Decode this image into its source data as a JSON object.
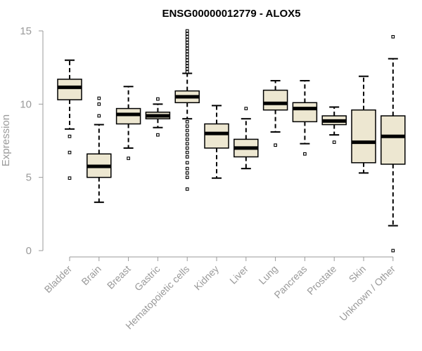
{
  "chart_data": {
    "type": "boxplot",
    "title": "ENSG00000012779 - ALOX5",
    "xlabel": "",
    "ylabel": "Expression",
    "ylim": [
      0,
      15
    ],
    "yticks": [
      0,
      5,
      10,
      15
    ],
    "colors": {
      "box_fill": "#ede7d1",
      "line": "#000000",
      "axis": "#9a9a9a"
    },
    "categories": [
      "Bladder",
      "Brain",
      "Breast",
      "Gastric",
      "Hematopoietic cells",
      "Kidney",
      "Liver",
      "Lung",
      "Pancreas",
      "Prostate",
      "Skin",
      "Unknown / Other"
    ],
    "boxes": [
      {
        "name": "Bladder",
        "q1": 10.3,
        "median": 11.15,
        "q3": 11.7,
        "whisker_low": 8.3,
        "whisker_high": 13.0,
        "outliers": [
          7.8,
          6.7,
          4.95
        ]
      },
      {
        "name": "Brain",
        "q1": 5.0,
        "median": 5.75,
        "q3": 6.6,
        "whisker_low": 3.3,
        "whisker_high": 8.6,
        "outliers": [
          10.4,
          10.0,
          9.2
        ]
      },
      {
        "name": "Breast",
        "q1": 8.65,
        "median": 9.3,
        "q3": 9.7,
        "whisker_low": 7.0,
        "whisker_high": 11.2,
        "outliers": [
          6.3
        ]
      },
      {
        "name": "Gastric",
        "q1": 9.0,
        "median": 9.2,
        "q3": 9.45,
        "whisker_low": 8.4,
        "whisker_high": 10.0,
        "outliers": [
          10.35,
          7.9
        ]
      },
      {
        "name": "Hematopoietic cells",
        "q1": 10.1,
        "median": 10.5,
        "q3": 10.9,
        "whisker_low": 9.0,
        "whisker_high": 12.1,
        "outliers": [
          15.0,
          14.8,
          14.6,
          14.4,
          14.2,
          14.0,
          13.8,
          13.6,
          13.4,
          13.2,
          13.0,
          12.8,
          12.6,
          12.4,
          12.2,
          8.8,
          8.5,
          8.2,
          7.9,
          7.6,
          7.3,
          7.0,
          6.7,
          6.4,
          6.0,
          5.6,
          5.3,
          5.0,
          4.2
        ]
      },
      {
        "name": "Kidney",
        "q1": 7.0,
        "median": 8.0,
        "q3": 8.65,
        "whisker_low": 4.95,
        "whisker_high": 9.9,
        "outliers": []
      },
      {
        "name": "Liver",
        "q1": 6.4,
        "median": 7.0,
        "q3": 7.6,
        "whisker_low": 5.6,
        "whisker_high": 9.0,
        "outliers": [
          9.7
        ]
      },
      {
        "name": "Lung",
        "q1": 9.6,
        "median": 10.05,
        "q3": 10.95,
        "whisker_low": 8.1,
        "whisker_high": 11.6,
        "outliers": [
          7.2
        ]
      },
      {
        "name": "Pancreas",
        "q1": 8.8,
        "median": 9.7,
        "q3": 10.1,
        "whisker_low": 7.3,
        "whisker_high": 11.6,
        "outliers": [
          6.6
        ]
      },
      {
        "name": "Prostate",
        "q1": 8.6,
        "median": 8.85,
        "q3": 9.2,
        "whisker_low": 7.9,
        "whisker_high": 9.8,
        "outliers": [
          7.4
        ]
      },
      {
        "name": "Skin",
        "q1": 6.0,
        "median": 7.4,
        "q3": 9.6,
        "whisker_low": 5.3,
        "whisker_high": 11.9,
        "outliers": []
      },
      {
        "name": "Unknown / Other",
        "q1": 5.9,
        "median": 7.8,
        "q3": 9.2,
        "whisker_low": 1.7,
        "whisker_high": 13.1,
        "outliers": [
          14.6,
          0.0
        ]
      }
    ]
  }
}
